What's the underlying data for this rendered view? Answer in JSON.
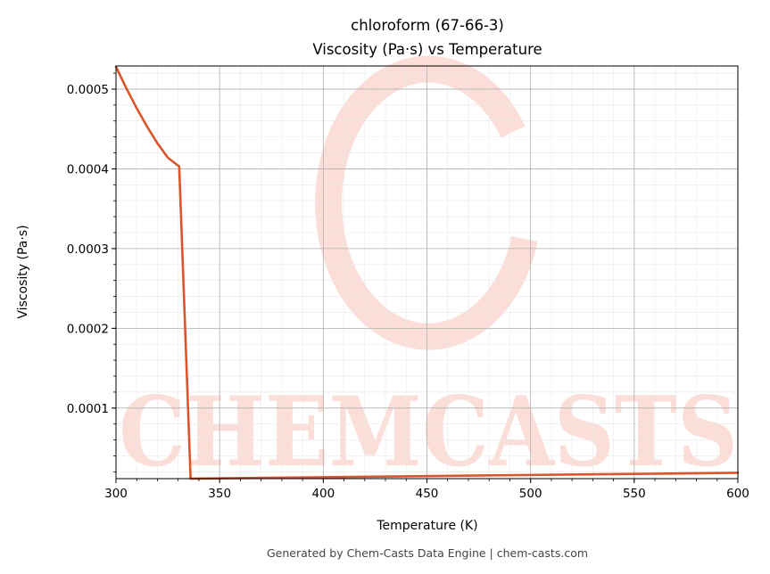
{
  "chart_data": {
    "type": "line",
    "title": "chloroform (67-66-3)",
    "subtitle": "Viscosity (Pa·s) vs Temperature",
    "xlabel": "Temperature (K)",
    "ylabel": "Viscosity (Pa·s)",
    "xlim": [
      300,
      600
    ],
    "ylim": [
      1.15e-05,
      0.000529
    ],
    "x_ticks": [
      300,
      350,
      400,
      450,
      500,
      550,
      600
    ],
    "x_tick_labels": [
      "300",
      "350",
      "400",
      "450",
      "500",
      "550",
      "600"
    ],
    "y_ticks": [
      0.0001,
      0.0002,
      0.0003,
      0.0004,
      0.0005
    ],
    "y_tick_labels": [
      "0.0001",
      "0.0002",
      "0.0003",
      "0.0004",
      "0.0005"
    ],
    "grid": true,
    "minor_grid": true,
    "series": [
      {
        "color": "#d9552a",
        "x": [
          300,
          305,
          310,
          315,
          320,
          325,
          330.5,
          336,
          340,
          350,
          400,
          450,
          500,
          550,
          600
        ],
        "y": [
          0.000528,
          0.000501,
          0.000476,
          0.000453,
          0.000432,
          0.000414,
          0.000403,
          1.15e-05,
          1.16e-05,
          1.19e-05,
          1.33e-05,
          1.47e-05,
          1.61e-05,
          1.74e-05,
          1.88e-05
        ]
      }
    ]
  },
  "watermark": {
    "text": "CHEMCASTS",
    "color": "#fbd3cc"
  },
  "footer": "Generated by Chem-Casts Data Engine | chem-casts.com"
}
